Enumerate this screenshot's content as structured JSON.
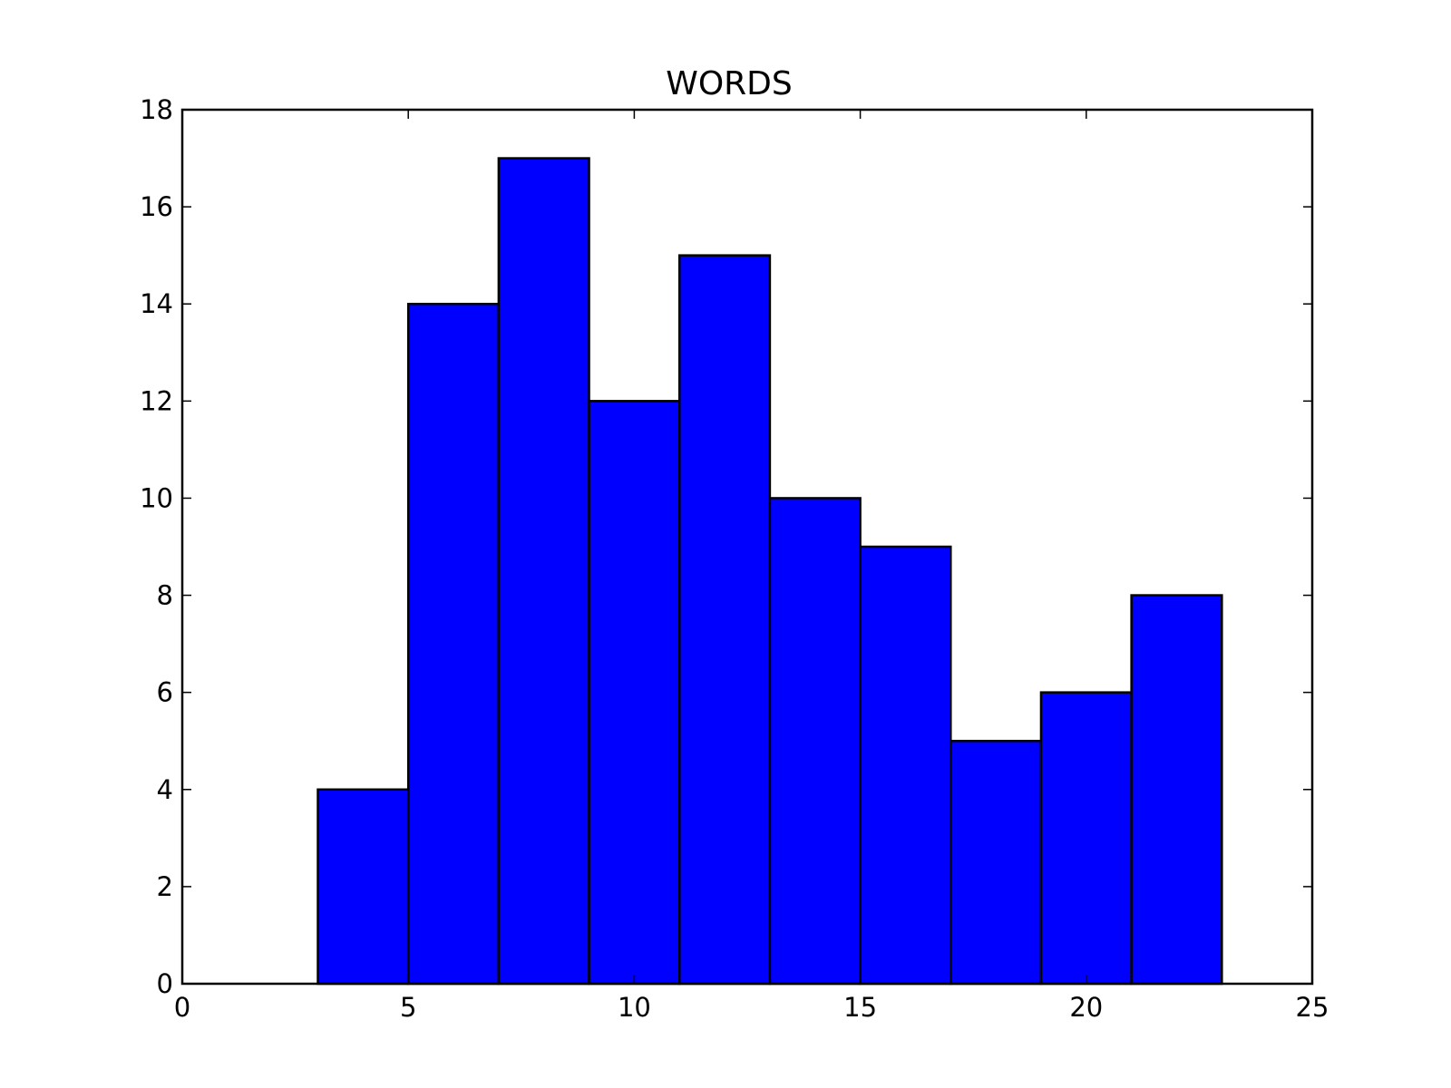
{
  "chart_data": {
    "type": "bar",
    "title": "WORDS",
    "xlabel": "",
    "ylabel": "",
    "xlim": [
      0,
      25
    ],
    "ylim": [
      0,
      18
    ],
    "x_ticks": [
      {
        "value": 0,
        "label": "0"
      },
      {
        "value": 5,
        "label": "5"
      },
      {
        "value": 10,
        "label": "10"
      },
      {
        "value": 15,
        "label": "15"
      },
      {
        "value": 20,
        "label": "20"
      },
      {
        "value": 25,
        "label": "25"
      }
    ],
    "y_ticks": [
      {
        "value": 0,
        "label": "0"
      },
      {
        "value": 2,
        "label": "2"
      },
      {
        "value": 4,
        "label": "4"
      },
      {
        "value": 6,
        "label": "6"
      },
      {
        "value": 8,
        "label": "8"
      },
      {
        "value": 10,
        "label": "10"
      },
      {
        "value": 12,
        "label": "12"
      },
      {
        "value": 14,
        "label": "14"
      },
      {
        "value": 16,
        "label": "16"
      },
      {
        "value": 18,
        "label": "18"
      }
    ],
    "bins": [
      {
        "start": 3,
        "end": 5,
        "count": 4
      },
      {
        "start": 5,
        "end": 7,
        "count": 14
      },
      {
        "start": 7,
        "end": 9,
        "count": 17
      },
      {
        "start": 9,
        "end": 11,
        "count": 12
      },
      {
        "start": 11,
        "end": 13,
        "count": 15
      },
      {
        "start": 13,
        "end": 15,
        "count": 10
      },
      {
        "start": 15,
        "end": 17,
        "count": 9
      },
      {
        "start": 17,
        "end": 19,
        "count": 5
      },
      {
        "start": 19,
        "end": 21,
        "count": 6
      },
      {
        "start": 21,
        "end": 23,
        "count": 8
      }
    ],
    "bar_color": "#0000ff",
    "edge_color": "#000000",
    "grid": false,
    "legend": "none"
  }
}
